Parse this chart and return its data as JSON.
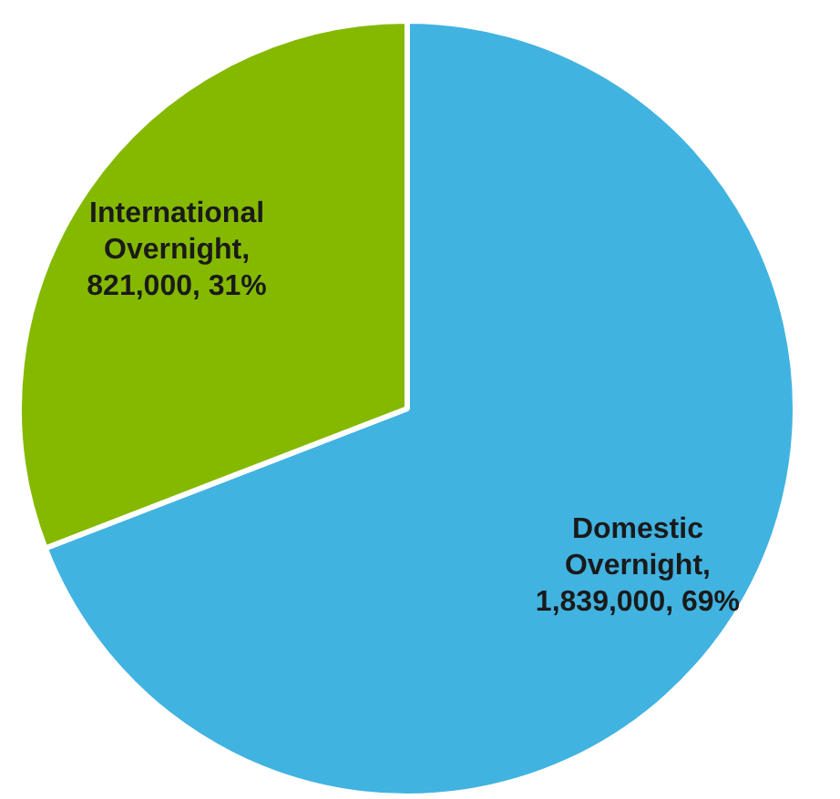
{
  "chart_data": {
    "type": "pie",
    "categories": [
      "Domestic Overnight",
      "International Overnight"
    ],
    "values": [
      1839000,
      821000
    ],
    "colors": [
      "#41b3e0",
      "#84b900"
    ],
    "value_labels": [
      ", 1,839,000, 69%",
      ", 821,000, 31%"
    ],
    "legend": false
  }
}
